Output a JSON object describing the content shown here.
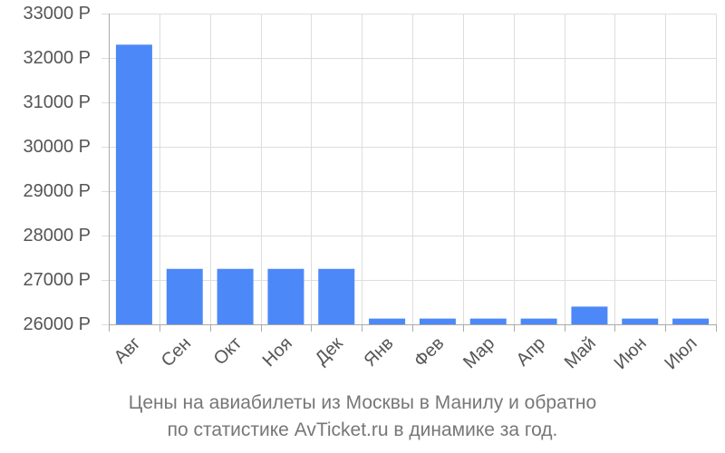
{
  "chart_data": {
    "type": "bar",
    "categories": [
      "Авг",
      "Сен",
      "Окт",
      "Ноя",
      "Дек",
      "Янв",
      "Фев",
      "Мар",
      "Апр",
      "Май",
      "Июн",
      "Июл"
    ],
    "values": [
      32300,
      27250,
      27250,
      27250,
      27250,
      26130,
      26130,
      26130,
      26130,
      26400,
      26130,
      26130
    ],
    "y_ticks": [
      "26000 Р",
      "27000 Р",
      "28000 Р",
      "29000 Р",
      "30000 Р",
      "31000 Р",
      "32000 Р",
      "33000 Р"
    ],
    "ylim": [
      26000,
      33000
    ],
    "grid": true,
    "bar_color": "#4d88f9",
    "title_lines": [
      "Цены на авиабилеты из Москвы в Манилу и обратно",
      "по статистике AvTicket.ru в динамике за год."
    ]
  }
}
